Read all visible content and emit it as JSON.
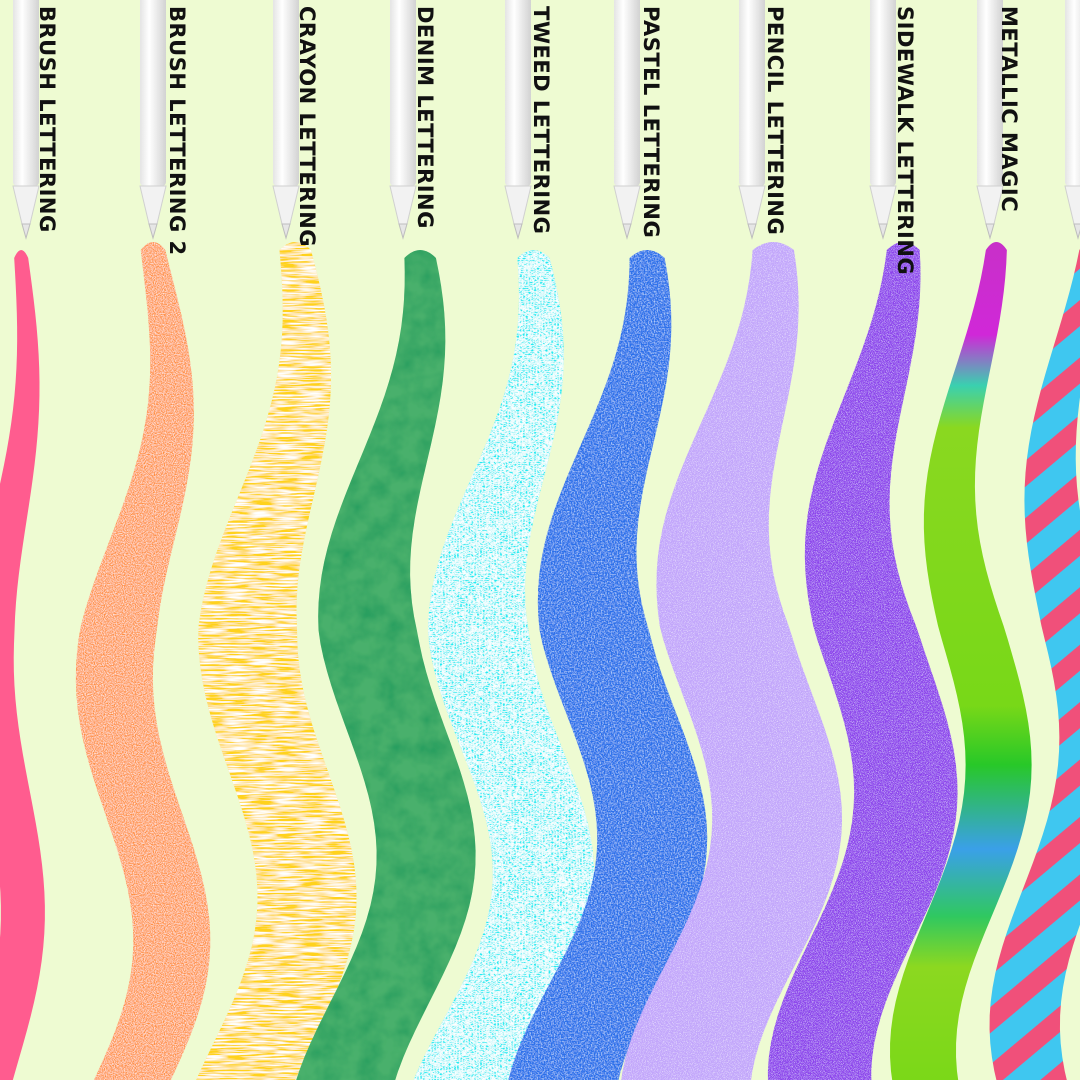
{
  "background_color": "#eefbd2",
  "brushes": [
    {
      "label": "BRUSH LETTERING",
      "color": "#ff5c8f",
      "texture": "solid"
    },
    {
      "label": "BRUSH LETTERING 2",
      "color": "#ff9040",
      "texture": "chalk"
    },
    {
      "label": "CRAYON LETTERING",
      "color": "#ffd21e",
      "texture": "crayon"
    },
    {
      "label": "DENIM LETTERING",
      "color": "#48b06c",
      "texture": "soft"
    },
    {
      "label": "TWEED LETTERING",
      "color": "#22ecf2",
      "texture": "tweed"
    },
    {
      "label": "PASTEL LETTERING",
      "color": "#2b6fea",
      "texture": "pastel"
    },
    {
      "label": "PENCIL LETTERING",
      "color": "#c2a6fb",
      "texture": "grain"
    },
    {
      "label": "SIDEWALK LETTERING",
      "color": "#8d45ec",
      "texture": "speckle"
    },
    {
      "label": "METALLIC MAGIC",
      "color": "#7fd81e",
      "texture": "gradient"
    },
    {
      "label": "",
      "color": "#3fc7f0",
      "texture": "stripes"
    }
  ]
}
